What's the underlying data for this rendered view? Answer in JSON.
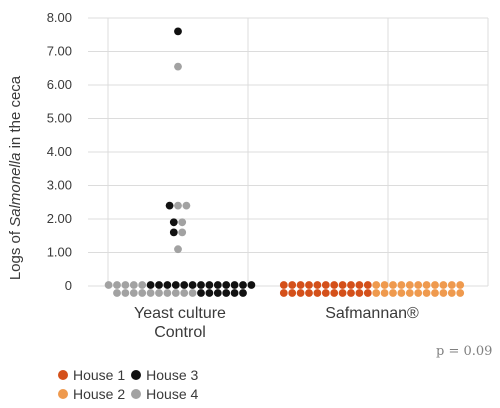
{
  "chart_data": {
    "type": "dot-strip",
    "ylabel_plain_before": "Logs of ",
    "ylabel_italic": "Salmonella",
    "ylabel_plain_after": " in the ceca",
    "yticks": [
      "0",
      "1.00",
      "2.00",
      "3.00",
      "4.00",
      "5.00",
      "6.00",
      "7.00",
      "8.00"
    ],
    "ylim": [
      0,
      8
    ],
    "grid": true,
    "categories": [
      {
        "line1": "Yeast culture",
        "line2": "Control"
      },
      {
        "line1": "Safmannan®",
        "line2": ""
      }
    ],
    "series": [
      {
        "name": "House 1",
        "color": "#d4501a"
      },
      {
        "name": "House 2",
        "color": "#ef9a4e"
      },
      {
        "name": "House 3",
        "color": "#111111"
      },
      {
        "name": "House 4",
        "color": "#a2a2a2"
      }
    ],
    "groups": [
      {
        "category": "Yeast culture Control",
        "counts_at_zero": [
          {
            "row": "upper",
            "house": "House 4",
            "count": 5
          },
          {
            "row": "upper",
            "house": "House 3",
            "count": 13
          },
          {
            "row": "lower",
            "house": "House 4",
            "count": 10
          },
          {
            "row": "lower",
            "house": "House 3",
            "count": 6
          }
        ],
        "points": [
          {
            "house": "House 3",
            "y": 7.6
          },
          {
            "house": "House 4",
            "y": 6.55
          },
          {
            "house": "House 3",
            "y": 2.4
          },
          {
            "house": "House 4",
            "y": 2.4
          },
          {
            "house": "House 4",
            "y": 2.4
          },
          {
            "house": "House 3",
            "y": 1.9
          },
          {
            "house": "House 4",
            "y": 1.9
          },
          {
            "house": "House 3",
            "y": 1.6
          },
          {
            "house": "House 4",
            "y": 1.6
          },
          {
            "house": "House 4",
            "y": 1.1
          }
        ]
      },
      {
        "category": "Safmannan®",
        "counts_at_zero": [
          {
            "row": "upper",
            "house": "House 1",
            "count": 11
          },
          {
            "row": "upper",
            "house": "House 2",
            "count": 11
          },
          {
            "row": "lower",
            "house": "House 1",
            "count": 11
          },
          {
            "row": "lower",
            "house": "House 2",
            "count": 11
          }
        ],
        "points": []
      }
    ],
    "annotation": "p = 0.09",
    "legend_position": "bottom-left"
  }
}
